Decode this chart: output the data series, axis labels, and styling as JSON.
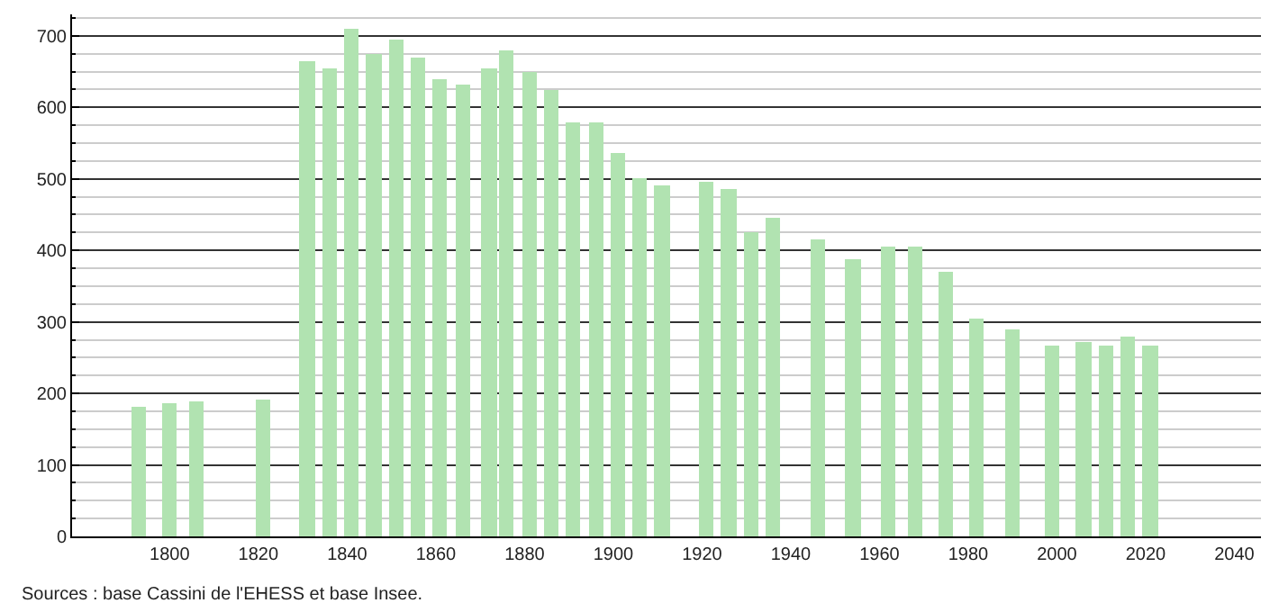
{
  "chart_data": {
    "type": "bar",
    "x": [
      1793,
      1800,
      1806,
      1821,
      1831,
      1836,
      1841,
      1846,
      1851,
      1856,
      1861,
      1866,
      1872,
      1876,
      1881,
      1886,
      1891,
      1896,
      1901,
      1906,
      1911,
      1921,
      1926,
      1931,
      1936,
      1946,
      1954,
      1962,
      1968,
      1975,
      1982,
      1990,
      1999,
      2006,
      2011,
      2016,
      2021
    ],
    "values": [
      180,
      187,
      190,
      192,
      665,
      655,
      710,
      675,
      695,
      670,
      640,
      632,
      655,
      680,
      650,
      625,
      580,
      580,
      535,
      502,
      490,
      495,
      487,
      425,
      445,
      415,
      387,
      405,
      405,
      370,
      305,
      290,
      267,
      273,
      267,
      280,
      267
    ],
    "color": "#b1e3b1",
    "xlim": [
      1778,
      2046
    ],
    "xticks": [
      1800,
      1820,
      1840,
      1860,
      1880,
      1900,
      1920,
      1940,
      1960,
      1980,
      2000,
      2020,
      2040
    ],
    "ylim": [
      0,
      730
    ],
    "yticks": [
      0,
      100,
      200,
      300,
      400,
      500,
      600,
      700
    ],
    "grid": "y",
    "annotations": [
      "Sources : base Cassini de l'EHESS et base Insee."
    ]
  }
}
